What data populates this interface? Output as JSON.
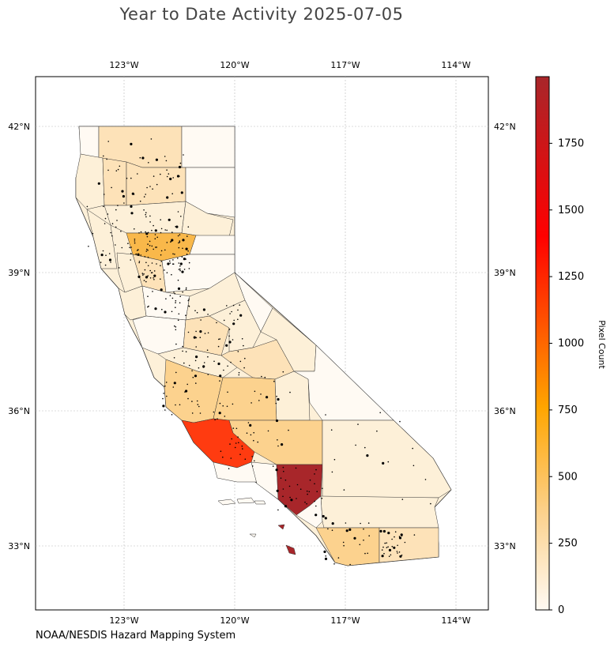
{
  "title": "Year to Date Activity 2025-07-05",
  "credit": "NOAA/NESDIS Hazard Mapping System",
  "map": {
    "lon_labels": [
      "123°W",
      "120°W",
      "117°W",
      "114°W"
    ],
    "lat_labels": [
      "42°N",
      "39°N",
      "36°N",
      "33°N"
    ],
    "colors": {
      "very_low": "#fffaf3",
      "low": "#fdf0d8",
      "light": "#fde2b8",
      "medium": "#fcd28e",
      "orange": "#f9b84a",
      "red": "#ff3b10",
      "dark_red": "#a8262a"
    }
  },
  "colorbar": {
    "label": "Pixel Count",
    "ticks": [
      "0",
      "250",
      "500",
      "750",
      "1000",
      "1250",
      "1500",
      "1750"
    ],
    "max": 2000,
    "stops": [
      "#fffaf3",
      "#fcd28e",
      "#ffa500",
      "#ff0000",
      "#a8262a"
    ]
  },
  "chart_data": {
    "type": "heatmap",
    "title": "Year to Date Activity 2025-07-05",
    "colorbar_label": "Pixel Count",
    "colorbar_range": [
      0,
      2000
    ],
    "region": "California counties",
    "xlim": [
      -125.5,
      -113.2
    ],
    "ylim": [
      31.7,
      43.0
    ]
  }
}
